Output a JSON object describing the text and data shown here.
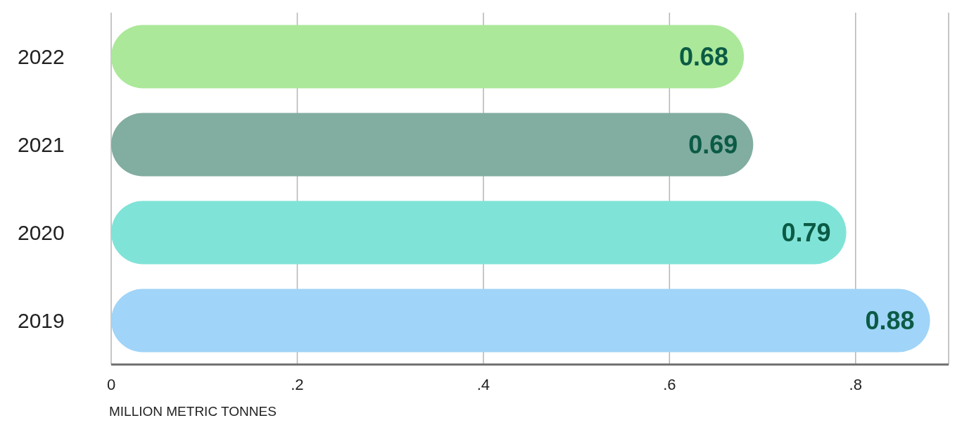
{
  "chart_data": {
    "type": "bar",
    "orientation": "horizontal",
    "categories": [
      "2022",
      "2021",
      "2020",
      "2019"
    ],
    "values": [
      0.68,
      0.69,
      0.79,
      0.88
    ],
    "colors": [
      "#abe89a",
      "#82ada1",
      "#80e3d8",
      "#a0d4f8"
    ],
    "xlim": [
      0,
      0.9
    ],
    "xticks": [
      0,
      {
        "value": 0.2,
        "label": ".2"
      },
      {
        "value": 0.4,
        "label": ".4"
      },
      {
        "value": 0.6,
        "label": ".6"
      },
      {
        "value": 0.8,
        "label": ".8"
      }
    ],
    "xlabel": "MILLION METRIC TONNES",
    "grid": "x",
    "data_labels": true
  }
}
